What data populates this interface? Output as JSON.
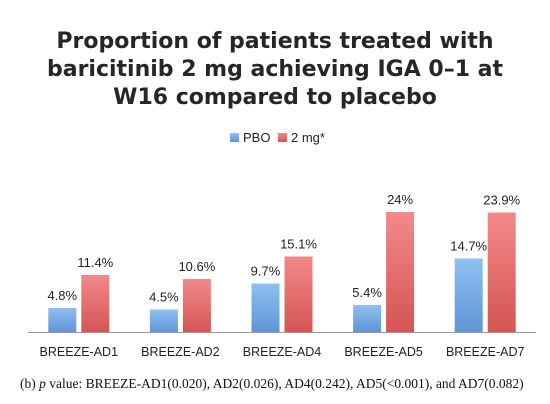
{
  "chart_data": {
    "type": "bar",
    "title_lines": [
      "Proportion of patients treated with",
      "baricitinib 2 mg achieving IGA 0–1 at",
      "W16 compared to placebo"
    ],
    "categories": [
      "BREEZE-AD1",
      "BREEZE-AD2",
      "BREEZE-AD4",
      "BREEZE-AD5",
      "BREEZE-AD7"
    ],
    "series": [
      {
        "name": "PBO",
        "color": "#6ea7e6",
        "values": [
          4.8,
          4.5,
          9.7,
          5.4,
          14.7
        ],
        "labels": [
          "4.8%",
          "4.5%",
          "9.7%",
          "5.4%",
          "14.7%"
        ]
      },
      {
        "name": "2 mg*",
        "color": "#e46b6b",
        "values": [
          11.4,
          10.6,
          15.1,
          24,
          23.9
        ],
        "labels": [
          "11.4%",
          "10.6%",
          "15.1%",
          "24%",
          "23.9%"
        ]
      }
    ],
    "xlabel": "",
    "ylabel": "",
    "ylim": [
      0,
      30
    ],
    "grid": false,
    "legend_position": "top-center"
  },
  "caption": {
    "prefix": "(b) ",
    "italic": "p",
    "text": " value: BREEZE-AD1(0.020), AD2(0.026), AD4(0.242), AD5(<0.001), and AD7(0.082)"
  }
}
